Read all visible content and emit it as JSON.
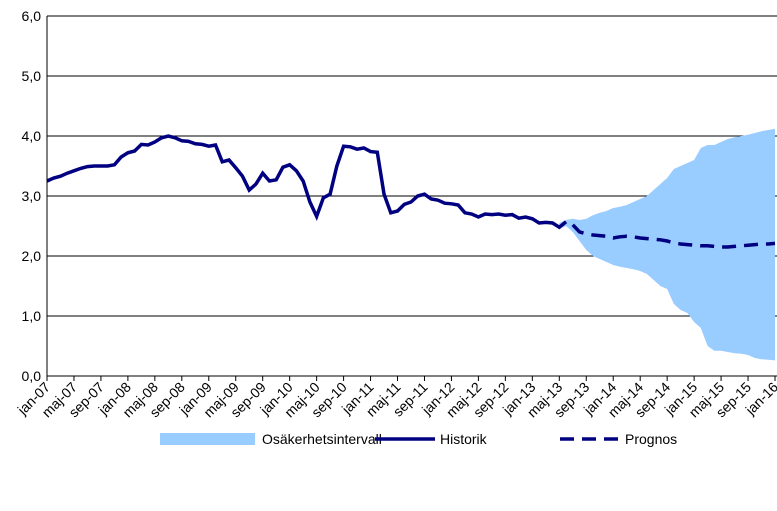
{
  "chart_data": {
    "type": "line",
    "grid": true,
    "ylim": [
      0,
      6
    ],
    "yticks": [
      {
        "value": 0,
        "label": "0,0"
      },
      {
        "value": 1,
        "label": "1,0"
      },
      {
        "value": 2,
        "label": "2,0"
      },
      {
        "value": 3,
        "label": "3,0"
      },
      {
        "value": 4,
        "label": "4,0"
      },
      {
        "value": 5,
        "label": "5,0"
      },
      {
        "value": 6,
        "label": "6,0"
      }
    ],
    "categories": [
      "jan-07",
      null,
      null,
      null,
      "maj-07",
      null,
      null,
      null,
      "sep-07",
      null,
      null,
      null,
      "jan-08",
      null,
      null,
      null,
      "maj-08",
      null,
      null,
      null,
      "sep-08",
      null,
      null,
      null,
      "jan-09",
      null,
      null,
      null,
      "maj-09",
      null,
      null,
      null,
      "sep-09",
      null,
      null,
      null,
      "jan-10",
      null,
      null,
      null,
      "maj-10",
      null,
      null,
      null,
      "sep-10",
      null,
      null,
      null,
      "jan-11",
      null,
      null,
      null,
      "maj-11",
      null,
      null,
      null,
      "sep-11",
      null,
      null,
      null,
      "jan-12",
      null,
      null,
      null,
      "maj-12",
      null,
      null,
      null,
      "sep-12",
      null,
      null,
      null,
      "jan-13",
      null,
      null,
      null,
      "maj-13",
      null,
      null,
      null,
      "sep-13",
      null,
      null,
      null,
      "jan-14",
      null,
      null,
      null,
      "maj-14",
      null,
      null,
      null,
      "sep-14",
      null,
      null,
      null,
      "jan-15",
      null,
      null,
      null,
      "maj-15",
      null,
      null,
      null,
      "sep-15",
      null,
      null,
      null,
      "jan-16"
    ],
    "band": {
      "name": "Osäkerhetsintervall",
      "color": "#99ccff",
      "lower": [
        null,
        null,
        null,
        null,
        null,
        null,
        null,
        null,
        null,
        null,
        null,
        null,
        null,
        null,
        null,
        null,
        null,
        null,
        null,
        null,
        null,
        null,
        null,
        null,
        null,
        null,
        null,
        null,
        null,
        null,
        null,
        null,
        null,
        null,
        null,
        null,
        null,
        null,
        null,
        null,
        null,
        null,
        null,
        null,
        null,
        null,
        null,
        null,
        null,
        null,
        null,
        null,
        null,
        null,
        null,
        null,
        null,
        null,
        null,
        null,
        null,
        null,
        null,
        null,
        null,
        null,
        null,
        null,
        null,
        null,
        null,
        null,
        null,
        null,
        null,
        null,
        2.45,
        2.5,
        2.4,
        2.25,
        2.1,
        2.0,
        1.95,
        1.9,
        1.85,
        1.82,
        1.8,
        1.78,
        1.75,
        1.7,
        1.6,
        1.5,
        1.45,
        1.2,
        1.1,
        1.05,
        0.9,
        0.8,
        0.5,
        0.42,
        0.42,
        0.4,
        0.38,
        0.37,
        0.35,
        0.3,
        0.28,
        0.27,
        0.26
      ],
      "upper": [
        null,
        null,
        null,
        null,
        null,
        null,
        null,
        null,
        null,
        null,
        null,
        null,
        null,
        null,
        null,
        null,
        null,
        null,
        null,
        null,
        null,
        null,
        null,
        null,
        null,
        null,
        null,
        null,
        null,
        null,
        null,
        null,
        null,
        null,
        null,
        null,
        null,
        null,
        null,
        null,
        null,
        null,
        null,
        null,
        null,
        null,
        null,
        null,
        null,
        null,
        null,
        null,
        null,
        null,
        null,
        null,
        null,
        null,
        null,
        null,
        null,
        null,
        null,
        null,
        null,
        null,
        null,
        null,
        null,
        null,
        null,
        null,
        null,
        null,
        null,
        null,
        2.55,
        2.6,
        2.62,
        2.6,
        2.62,
        2.68,
        2.72,
        2.75,
        2.8,
        2.82,
        2.85,
        2.9,
        2.95,
        3.0,
        3.1,
        3.2,
        3.3,
        3.45,
        3.5,
        3.55,
        3.6,
        3.8,
        3.85,
        3.85,
        3.9,
        3.95,
        3.98,
        4.0,
        4.02,
        4.05,
        4.08,
        4.1,
        4.12
      ]
    },
    "series": [
      {
        "name": "Historik",
        "color": "#000080",
        "dash": false,
        "values": [
          3.25,
          3.3,
          3.33,
          3.38,
          3.42,
          3.46,
          3.49,
          3.5,
          3.5,
          3.5,
          3.52,
          3.65,
          3.72,
          3.75,
          3.86,
          3.85,
          3.9,
          3.97,
          4.0,
          3.97,
          3.92,
          3.91,
          3.87,
          3.86,
          3.83,
          3.85,
          3.57,
          3.6,
          3.47,
          3.33,
          3.1,
          3.2,
          3.38,
          3.25,
          3.27,
          3.48,
          3.52,
          3.42,
          3.25,
          2.9,
          2.66,
          2.97,
          3.03,
          3.5,
          3.83,
          3.82,
          3.78,
          3.8,
          3.74,
          3.73,
          3.03,
          2.72,
          2.75,
          2.86,
          2.9,
          3.0,
          3.03,
          2.95,
          2.93,
          2.88,
          2.87,
          2.85,
          2.72,
          2.7,
          2.65,
          2.7,
          2.69,
          2.7,
          2.68,
          2.69,
          2.63,
          2.65,
          2.62,
          2.55,
          2.56,
          2.55,
          2.48,
          2.57,
          null,
          null,
          null,
          null,
          null,
          null,
          null,
          null,
          null,
          null,
          null,
          null,
          null,
          null,
          null,
          null,
          null,
          null,
          null,
          null,
          null,
          null,
          null,
          null,
          null,
          null,
          null,
          null,
          null,
          null,
          null
        ]
      },
      {
        "name": "Prognos",
        "color": "#000080",
        "dash": true,
        "values": [
          null,
          null,
          null,
          null,
          null,
          null,
          null,
          null,
          null,
          null,
          null,
          null,
          null,
          null,
          null,
          null,
          null,
          null,
          null,
          null,
          null,
          null,
          null,
          null,
          null,
          null,
          null,
          null,
          null,
          null,
          null,
          null,
          null,
          null,
          null,
          null,
          null,
          null,
          null,
          null,
          null,
          null,
          null,
          null,
          null,
          null,
          null,
          null,
          null,
          null,
          null,
          null,
          null,
          null,
          null,
          null,
          null,
          null,
          null,
          null,
          null,
          null,
          null,
          null,
          null,
          null,
          null,
          null,
          null,
          null,
          null,
          null,
          null,
          null,
          null,
          null,
          null,
          null,
          2.52,
          2.4,
          2.37,
          2.35,
          2.34,
          2.33,
          2.3,
          2.32,
          2.33,
          2.32,
          2.3,
          2.29,
          2.28,
          2.27,
          2.25,
          2.22,
          2.2,
          2.19,
          2.18,
          2.17,
          2.17,
          2.16,
          2.15,
          2.15,
          2.16,
          2.17,
          2.18,
          2.19,
          2.2,
          2.2,
          2.21
        ]
      }
    ]
  }
}
